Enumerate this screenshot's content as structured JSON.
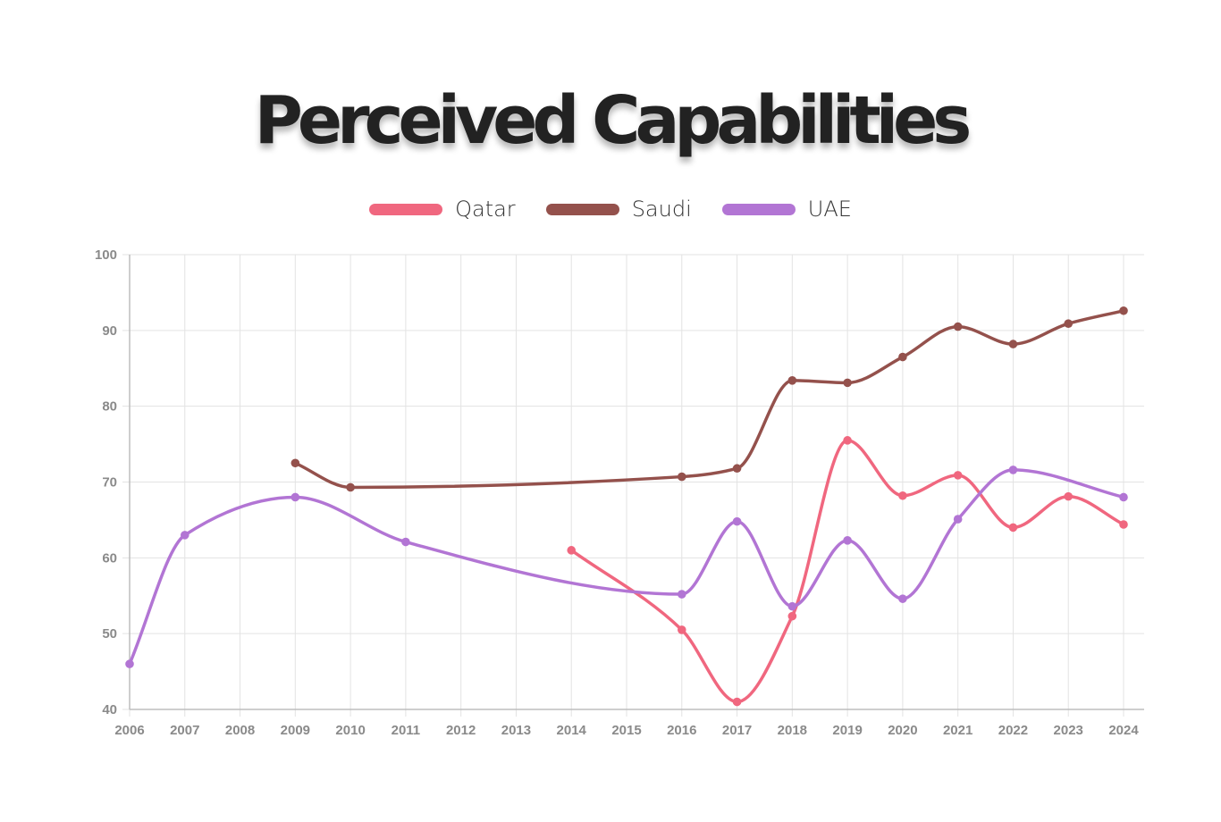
{
  "chart_data": {
    "type": "line",
    "title": "Perceived Capabilities",
    "xlabel": "",
    "ylabel": "",
    "categories": [
      "2006",
      "2007",
      "2008",
      "2009",
      "2010",
      "2011",
      "2012",
      "2013",
      "2014",
      "2015",
      "2016",
      "2017",
      "2018",
      "2019",
      "2020",
      "2021",
      "2022",
      "2023",
      "2024"
    ],
    "ylim": [
      40,
      100
    ],
    "yticks": [
      40,
      50,
      60,
      70,
      80,
      90,
      100
    ],
    "grid": true,
    "legend_position": "top-center",
    "series": [
      {
        "name": "Qatar",
        "color": "#f0677f",
        "values": [
          null,
          null,
          null,
          null,
          null,
          null,
          null,
          null,
          61.0,
          null,
          50.5,
          41.0,
          52.3,
          75.5,
          68.2,
          70.9,
          64.0,
          68.1,
          64.4
        ]
      },
      {
        "name": "Saudi",
        "color": "#94514c",
        "values": [
          null,
          null,
          null,
          72.5,
          69.3,
          null,
          null,
          null,
          null,
          null,
          70.7,
          71.8,
          83.4,
          83.1,
          86.5,
          90.5,
          88.2,
          90.9,
          92.6
        ]
      },
      {
        "name": "UAE",
        "color": "#b275d4",
        "values": [
          46.0,
          63.0,
          null,
          68.0,
          null,
          62.1,
          null,
          null,
          null,
          null,
          55.2,
          64.8,
          53.6,
          62.3,
          54.6,
          65.1,
          71.6,
          null,
          68.0
        ]
      }
    ]
  }
}
